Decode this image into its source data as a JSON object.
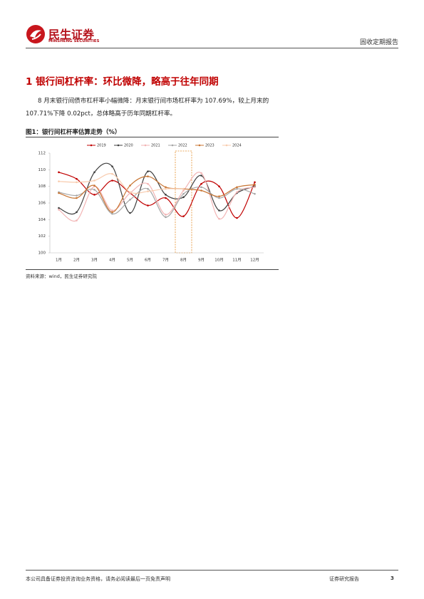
{
  "header": {
    "brand": "民生证券",
    "brand_en": "MINSHENG SECURITIES",
    "report_type": "固收定期报告"
  },
  "section_title": "1 银行间杠杆率：环比微降，略高于往年同期",
  "paragraph": "8 月末银行间债市杠杆率小幅微降：月末银行间市场杠杆率为 107.69%，较上月末的 107.71%下降 0.02pct，总体略高于历年同期杠杆率。",
  "figure_title": "图1：银行间杠杆率估算走势（%）",
  "chart_data": {
    "type": "line",
    "categories": [
      "1月",
      "2月",
      "3月",
      "4月",
      "5月",
      "6月",
      "7月",
      "8月",
      "9月",
      "10月",
      "11月",
      "12月"
    ],
    "series": [
      {
        "name": "2019",
        "color": "#c00000",
        "values": [
          109.7,
          108.9,
          107.0,
          108.7,
          107.2,
          105.7,
          106.6,
          104.4,
          108.3,
          108.0,
          104.2,
          108.5
        ]
      },
      {
        "name": "2020",
        "color": "#404040",
        "values": [
          105.4,
          104.9,
          109.7,
          110.4,
          104.8,
          109.8,
          107.0,
          106.7,
          109.3,
          105.1,
          107.2,
          108.0
        ]
      },
      {
        "name": "2021",
        "color": "#f2b4b4",
        "values": [
          105.2,
          103.9,
          108.0,
          105.1,
          107.2,
          108.3,
          104.6,
          107.5,
          109.6,
          104.1,
          107.3,
          107.9
        ]
      },
      {
        "name": "2022",
        "color": "#a6a6a6",
        "values": [
          107.3,
          106.9,
          107.6,
          104.7,
          106.4,
          107.7,
          104.3,
          107.1,
          107.9,
          106.6,
          107.7,
          107.1
        ]
      },
      {
        "name": "2023",
        "color": "#c87533",
        "values": [
          107.2,
          106.6,
          108.1,
          104.9,
          108.1,
          109.2,
          107.9,
          107.7,
          107.5,
          106.8,
          107.9,
          108.2
        ]
      },
      {
        "name": "2024",
        "color": "#f8cbad",
        "values": [
          108.6,
          108.5,
          108.7,
          109.5,
          107.3,
          107.4,
          107.71,
          107.69,
          null,
          null,
          null,
          null
        ]
      }
    ],
    "ylim": [
      100,
      112
    ],
    "yticks": [
      100,
      102,
      104,
      106,
      108,
      110,
      112
    ]
  },
  "source": "资料来源：wind，民生证券研究院",
  "footer": {
    "disclaimer": "本公司具备证券投资咨询业务资格，请务必阅读最后一页免责声明",
    "label": "证券研究报告",
    "page": "3"
  }
}
